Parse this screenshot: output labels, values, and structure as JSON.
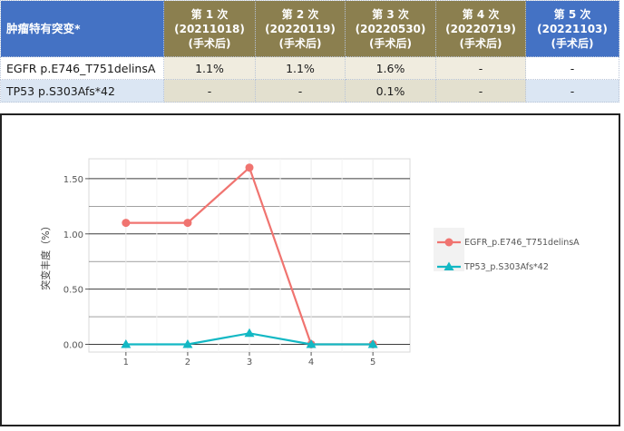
{
  "table": {
    "header_label": "肿瘤特有突变*",
    "columns": [
      {
        "name": "第 1 次",
        "date": "(20211018)",
        "note": "(手术后)"
      },
      {
        "name": "第 2 次",
        "date": "(20220119)",
        "note": "(手术后)"
      },
      {
        "name": "第 3 次",
        "date": "(20220530)",
        "note": "(手术后)"
      },
      {
        "name": "第 4 次",
        "date": "(20220719)",
        "note": "(手术后)"
      },
      {
        "name": "第 5 次",
        "date": "(20221103)",
        "note": "(手术后)"
      }
    ],
    "rows": [
      {
        "label": "EGFR p.E746_T751delinsA",
        "values": [
          "1.1%",
          "1.1%",
          "1.6%",
          "-",
          "-"
        ]
      },
      {
        "label": "TP53 p.S303Afs*42",
        "values": [
          "-",
          "-",
          "0.1%",
          "-",
          "-"
        ]
      }
    ],
    "colors": {
      "header_blue": "#4472c4",
      "header_olive": "#8b7f4f"
    }
  },
  "chart_data": {
    "type": "line",
    "x": [
      1,
      2,
      3,
      4,
      5
    ],
    "xticks": [
      "1",
      "2",
      "3",
      "4",
      "5"
    ],
    "yticks": [
      "0.00",
      "0.50",
      "1.00",
      "1.50"
    ],
    "ylabel": "突变丰度（%）",
    "xlabel": "",
    "title": "",
    "xlim": [
      0.4,
      5.6
    ],
    "ylim": [
      -0.07,
      1.68
    ],
    "grid": true,
    "legend_position": "right",
    "series": [
      {
        "name": "EGFR_p.E746_T751delinsA",
        "values": [
          1.1,
          1.1,
          1.6,
          0,
          0
        ],
        "color": "#f07470",
        "marker": "circle"
      },
      {
        "name": "TP53_p.S303Afs*42",
        "values": [
          0,
          0,
          0.1,
          0,
          0
        ],
        "color": "#13b8c4",
        "marker": "triangle"
      }
    ]
  }
}
